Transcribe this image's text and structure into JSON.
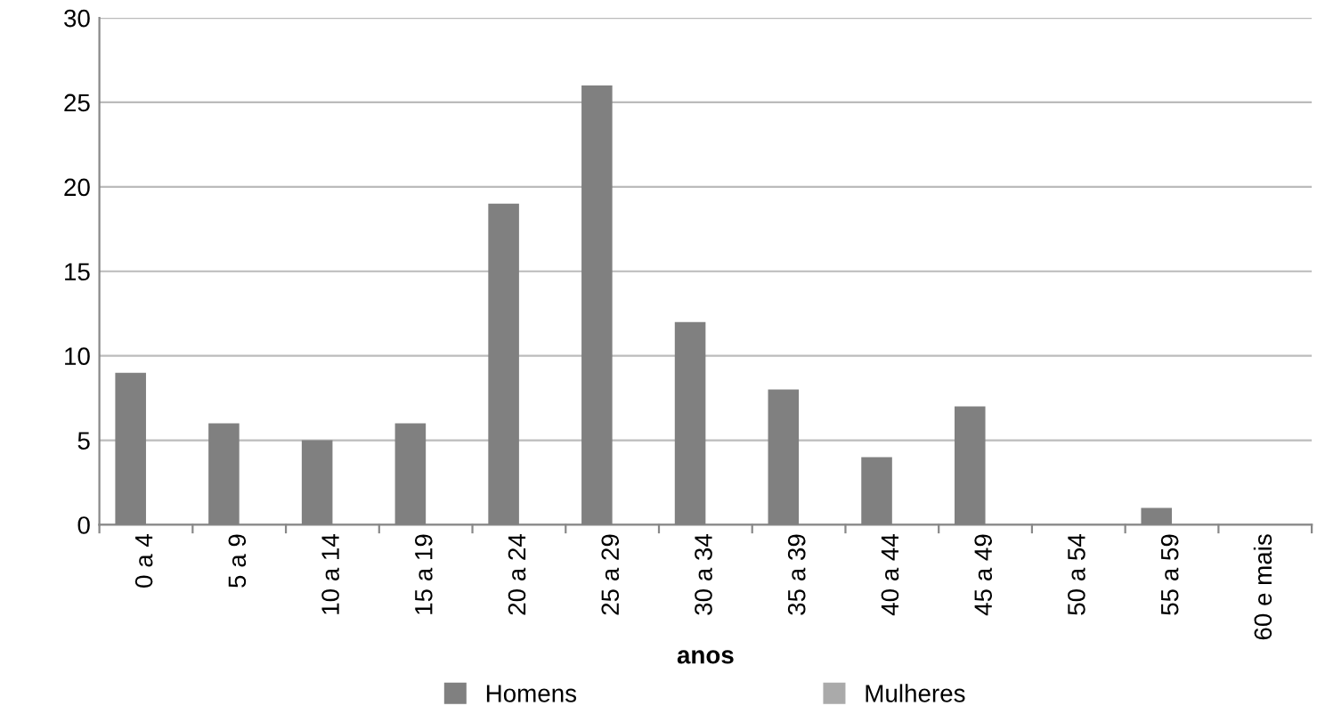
{
  "chart_data": {
    "type": "bar",
    "xlabel": "anos",
    "categories": [
      "0 a 4",
      "5 a 9",
      "10 a 14",
      "15 a 19",
      "20 a 24",
      "25 a 29",
      "30 a 34",
      "35 a 39",
      "40 a 44",
      "45 a 49",
      "50 a 54",
      "55 a 59",
      "60 e mais"
    ],
    "series": [
      {
        "name": "Homens",
        "color": "#808080",
        "values": [
          9,
          6,
          5,
          6,
          19,
          26,
          12,
          8,
          4,
          7,
          0,
          1,
          0
        ]
      },
      {
        "name": "Mulheres",
        "color": "#aaaaaa",
        "values": [
          0,
          0,
          0,
          0,
          0,
          0,
          0,
          0,
          0,
          0,
          0,
          0,
          0
        ]
      }
    ],
    "ylim": [
      0,
      30
    ],
    "yticks": [
      0,
      5,
      10,
      15,
      20,
      25,
      30
    ],
    "grid": "y",
    "legend": "bottom"
  }
}
